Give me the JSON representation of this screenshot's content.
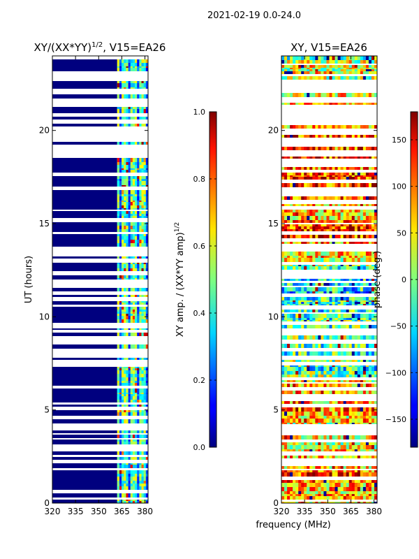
{
  "figure": {
    "suptitle": "2021-02-19 0.0-24.0",
    "xlabel_shared": "frequency (MHz)"
  },
  "chart_data": [
    {
      "type": "heatmap",
      "title_main": "XY/(XX*YY)",
      "title_sup": "1/2",
      "title_tail": ", V15=EA26",
      "ylabel": "UT (hours)",
      "xlim": [
        320,
        382
      ],
      "ylim": [
        0,
        24
      ],
      "xticks": [
        "320",
        "335",
        "350",
        "365",
        "380"
      ],
      "xtick_values": [
        320,
        335,
        350,
        365,
        380
      ],
      "yticks": [
        "0",
        "5",
        "10",
        "15",
        "20"
      ],
      "ytick_values": [
        0,
        5,
        10,
        15,
        20
      ],
      "colorbar": {
        "label_main": "XY amp. / (XX*YY amp)",
        "label_sup": "1/2",
        "range": [
          0,
          1
        ],
        "ticks": [
          "0.0",
          "0.2",
          "0.4",
          "0.6",
          "0.8",
          "1.0"
        ],
        "tick_values": [
          0,
          0.2,
          0.4,
          0.6,
          0.8,
          1.0
        ]
      },
      "data_columns_mhz": [
        362,
        383
      ],
      "low_value_region_mhz": [
        320,
        362
      ]
    },
    {
      "type": "heatmap",
      "title": "XY, V15=EA26",
      "xlim": [
        320,
        382
      ],
      "ylim": [
        0,
        24
      ],
      "xticks": [
        "320",
        "335",
        "350",
        "365",
        "380"
      ],
      "xtick_values": [
        320,
        335,
        350,
        365,
        380
      ],
      "yticks": [
        "0",
        "5",
        "10",
        "15",
        "20"
      ],
      "ytick_values": [
        0,
        5,
        10,
        15,
        20
      ],
      "colorbar": {
        "label": "phase (deg.)",
        "range": [
          -180,
          180
        ],
        "ticks": [
          "−150",
          "−100",
          "−50",
          "0",
          "50",
          "100",
          "150"
        ],
        "tick_values": [
          -150,
          -100,
          -50,
          0,
          50,
          100,
          150
        ]
      }
    }
  ]
}
